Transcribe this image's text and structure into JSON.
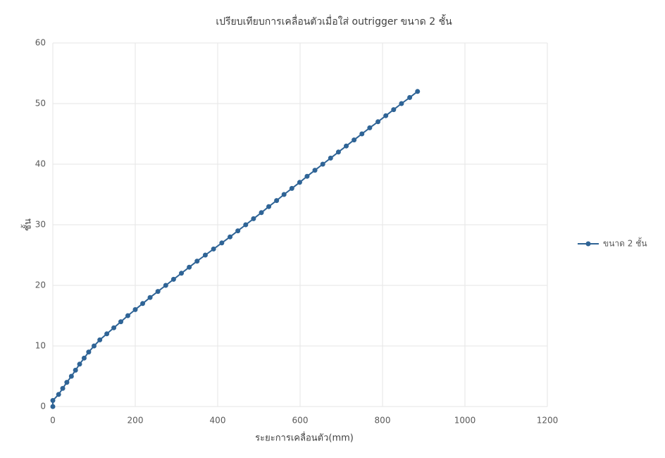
{
  "chart_data": {
    "type": "scatter-line",
    "title": "เปรียบเทียบการเคลื่อนตัวเมื่อใส่ outrigger ขนาด 2 ชั้น",
    "x_label": "ระยะการเคลื่อนตัว(mm)",
    "y_label": "ชั้น",
    "xlim": [
      0,
      1200
    ],
    "xticks": [
      0,
      200,
      400,
      600,
      800,
      1000,
      1200
    ],
    "ylim": [
      0,
      60
    ],
    "yticks": [
      0,
      10,
      20,
      30,
      40,
      50,
      60
    ],
    "grid": true,
    "legend": "right",
    "series": [
      {
        "name": "ขนาด 2 ชั้น",
        "color": "#2f6496",
        "x": [
          0,
          0,
          14,
          24,
          34,
          45,
          55,
          65,
          76,
          87,
          100,
          114,
          131,
          148,
          165,
          182,
          200,
          218,
          236,
          255,
          274,
          293,
          312,
          331,
          350,
          370,
          390,
          410,
          430,
          449,
          468,
          487,
          506,
          524,
          543,
          561,
          580,
          599,
          617,
          636,
          655,
          674,
          693,
          712,
          731,
          750,
          769,
          789,
          808,
          827,
          846,
          866,
          885
        ],
        "values": [
          0,
          1,
          2,
          3,
          4,
          5,
          6,
          7,
          8,
          9,
          10,
          11,
          12,
          13,
          14,
          15,
          16,
          17,
          18,
          19,
          20,
          21,
          22,
          23,
          24,
          25,
          26,
          27,
          28,
          29,
          30,
          31,
          32,
          33,
          34,
          35,
          36,
          37,
          38,
          39,
          40,
          41,
          42,
          43,
          44,
          45,
          46,
          47,
          48,
          49,
          50,
          51,
          52
        ]
      }
    ]
  }
}
